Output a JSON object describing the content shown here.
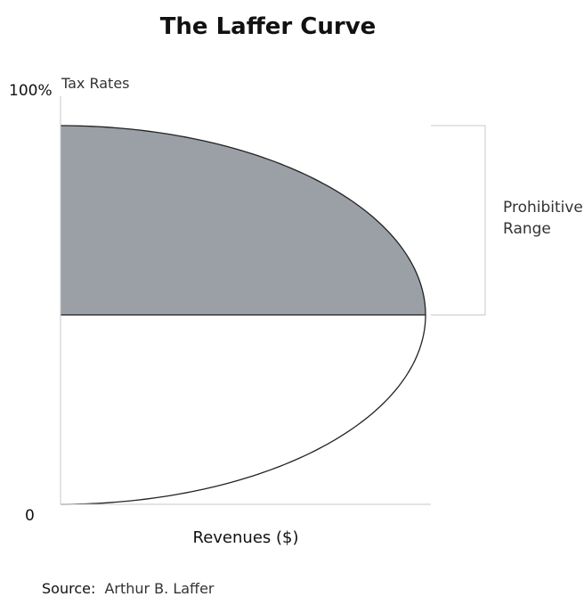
{
  "chart_data": {
    "type": "area",
    "title": "The Laffer Curve",
    "xlabel": "Revenues ($)",
    "ylabel": "Tax Rates",
    "y_ticks": [
      "0",
      "100%"
    ],
    "ylim": [
      0,
      100
    ],
    "xlim": [
      0,
      100
    ],
    "series": [
      {
        "points": [
          {
            "x": 0,
            "y": 0
          },
          {
            "x": 45,
            "y": 10
          },
          {
            "x": 70,
            "y": 20
          },
          {
            "x": 87,
            "y": 30
          },
          {
            "x": 96,
            "y": 40
          },
          {
            "x": 100,
            "y": 50
          },
          {
            "x": 96,
            "y": 60
          },
          {
            "x": 87,
            "y": 70
          },
          {
            "x": 70,
            "y": 80
          },
          {
            "x": 45,
            "y": 90
          },
          {
            "x": 0,
            "y": 100
          }
        ]
      }
    ],
    "shaded_region": {
      "y_from": 50,
      "y_to": 100,
      "color": "#9aa0a6"
    },
    "annotation": {
      "lines": [
        "Prohibitive",
        "Range"
      ],
      "y_from": 50,
      "y_to": 100
    },
    "grid": false
  },
  "source": {
    "label": "Source:",
    "value": "Arthur B. Laffer"
  }
}
